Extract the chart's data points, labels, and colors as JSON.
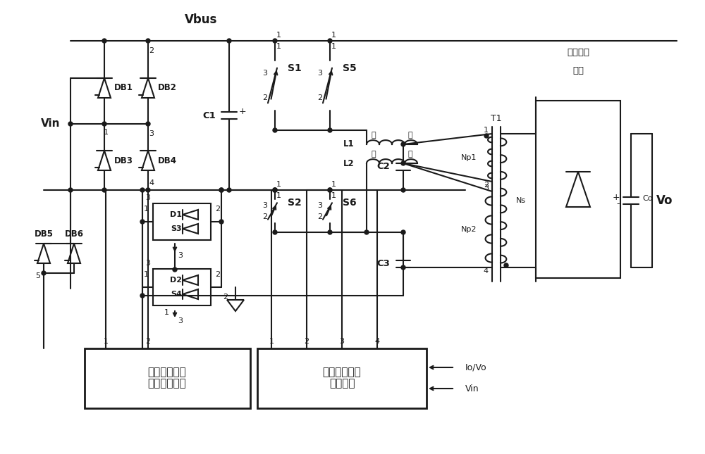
{
  "bg": "#ffffff",
  "lc": "#1a1a1a",
  "lw": 1.5,
  "figsize": [
    10.0,
    6.45
  ],
  "vbus_label": "Vbus",
  "vin_label": "Vin",
  "vo_label": "Vo",
  "box1_line1": "功率因素校正",
  "box1_line2": "错相控制电路",
  "box2_line1": "谐振错相控制",
  "box2_line2": "驱动电路",
  "out_line1": "输出整流",
  "out_line2": "电路"
}
